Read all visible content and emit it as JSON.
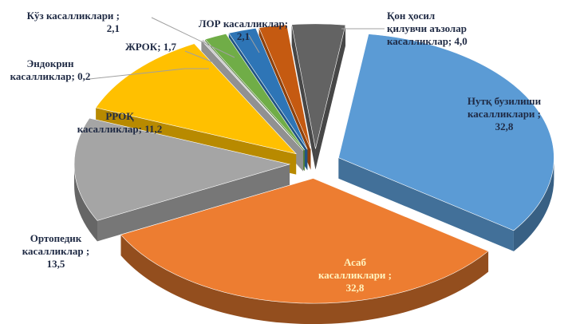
{
  "chart_data": {
    "type": "pie",
    "style": "3d-exploded",
    "slices": [
      {
        "label_lines": [
          "Нутқ бузилиши",
          "касалликлари ;",
          "32,8"
        ],
        "value": 32.8,
        "color": "#5b9bd5",
        "label_inside": true,
        "label_color": "#1f2a44"
      },
      {
        "label_lines": [
          "Асаб",
          "касалликлари ;",
          "32,8"
        ],
        "value": 32.8,
        "color": "#ed7d31",
        "label_inside": true,
        "label_color": "#fff4c0"
      },
      {
        "label_lines": [
          "Ортопедик",
          "касалликлар ;",
          "13,5"
        ],
        "value": 13.5,
        "color": "#a5a5a5",
        "label_inside": false
      },
      {
        "label_lines": [
          "РРОҚ",
          "касалликлар; 11,2"
        ],
        "value": 11.2,
        "color": "#ffc000",
        "label_inside": false
      },
      {
        "label_lines": [
          "Эндокрин",
          "касалликлар; 0,2"
        ],
        "value": 0.2,
        "color": "#c9c9c9",
        "label_inside": false
      },
      {
        "label_lines": [
          "ЖРОК; 1,7"
        ],
        "value": 1.7,
        "color": "#70ad47",
        "label_inside": false
      },
      {
        "label_lines": [
          "Кўз касалликлари ;",
          "2,1"
        ],
        "value": 2.1,
        "color": "#2e75b6",
        "label_inside": false
      },
      {
        "label_lines": [
          "ЛОР касалликлар;",
          "2,1"
        ],
        "value": 2.1,
        "color": "#c55a11",
        "label_inside": false
      },
      {
        "label_lines": [
          "Қон ҳосил",
          "қилувчи аъзолар",
          "касалликлар; 4,0"
        ],
        "value": 4.0,
        "color": "#636363",
        "label_inside": false
      }
    ]
  }
}
